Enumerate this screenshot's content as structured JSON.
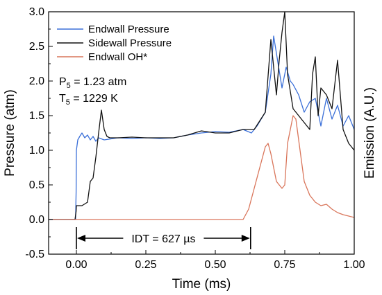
{
  "chart_data": {
    "type": "line",
    "xlabel": "Time (ms)",
    "ylabel": "Pressure (atm)",
    "y2label": "Emission (A.U.)",
    "xlim": [
      -0.1,
      1.0
    ],
    "ylim": [
      -0.5,
      3.0
    ],
    "xticks": [
      "0.00",
      "0.25",
      "0.50",
      "0.75",
      "1.00"
    ],
    "xtick_values": [
      0.0,
      0.25,
      0.5,
      0.75,
      1.0
    ],
    "yticks": [
      "-0.5",
      "0.0",
      "0.5",
      "1.0",
      "1.5",
      "2.0",
      "2.5",
      "3.0"
    ],
    "ytick_values": [
      -0.5,
      0.0,
      0.5,
      1.0,
      1.5,
      2.0,
      2.5,
      3.0
    ],
    "grid": false,
    "legend_position": "top-left",
    "series": [
      {
        "name": "Endwall Pressure",
        "color": "#3a6fd8",
        "x": [
          -0.1,
          -0.003,
          -0.001,
          0.0,
          0.005,
          0.012,
          0.02,
          0.03,
          0.04,
          0.05,
          0.06,
          0.07,
          0.08,
          0.1,
          0.15,
          0.2,
          0.25,
          0.3,
          0.35,
          0.4,
          0.45,
          0.5,
          0.55,
          0.6,
          0.63,
          0.65,
          0.68,
          0.7,
          0.71,
          0.72,
          0.74,
          0.755,
          0.77,
          0.78,
          0.8,
          0.82,
          0.84,
          0.86,
          0.88,
          0.9,
          0.92,
          0.94,
          0.96,
          0.98,
          1.0
        ],
        "y": [
          0.0,
          0.0,
          0.4,
          1.0,
          1.15,
          1.2,
          1.25,
          1.18,
          1.22,
          1.15,
          1.2,
          1.13,
          1.18,
          1.15,
          1.18,
          1.17,
          1.18,
          1.17,
          1.18,
          1.22,
          1.25,
          1.27,
          1.26,
          1.3,
          1.25,
          1.35,
          1.55,
          2.1,
          2.65,
          2.4,
          1.9,
          2.2,
          2.0,
          1.95,
          1.8,
          1.55,
          1.7,
          1.75,
          1.35,
          1.75,
          1.45,
          1.65,
          1.35,
          1.5,
          1.3
        ]
      },
      {
        "name": "Sidewall Pressure",
        "color": "#111111",
        "x": [
          -0.1,
          -0.005,
          -0.001,
          0.0,
          0.01,
          0.02,
          0.04,
          0.05,
          0.06,
          0.07,
          0.08,
          0.09,
          0.1,
          0.11,
          0.12,
          0.15,
          0.2,
          0.25,
          0.3,
          0.35,
          0.4,
          0.45,
          0.5,
          0.55,
          0.6,
          0.64,
          0.68,
          0.7,
          0.72,
          0.73,
          0.74,
          0.75,
          0.76,
          0.78,
          0.8,
          0.82,
          0.84,
          0.85,
          0.86,
          0.87,
          0.88,
          0.9,
          0.92,
          0.94,
          0.96,
          0.98,
          1.0
        ],
        "y": [
          0.0,
          0.0,
          0.12,
          0.2,
          0.2,
          0.2,
          0.25,
          0.55,
          0.6,
          0.9,
          1.25,
          1.58,
          1.3,
          1.2,
          1.18,
          1.18,
          1.19,
          1.18,
          1.18,
          1.18,
          1.22,
          1.28,
          1.25,
          1.25,
          1.3,
          1.3,
          1.55,
          2.6,
          1.8,
          2.3,
          2.7,
          3.0,
          2.1,
          1.6,
          1.5,
          1.4,
          1.3,
          2.1,
          2.35,
          1.5,
          1.9,
          1.8,
          1.6,
          2.3,
          1.3,
          1.1,
          1.0
        ]
      },
      {
        "name": "Endwall OH*",
        "color": "#d9755a",
        "x": [
          -0.1,
          0.6,
          0.62,
          0.64,
          0.66,
          0.68,
          0.69,
          0.7,
          0.72,
          0.74,
          0.75,
          0.76,
          0.77,
          0.78,
          0.79,
          0.8,
          0.82,
          0.84,
          0.86,
          0.88,
          0.9,
          0.92,
          0.94,
          0.96,
          0.98,
          1.0
        ],
        "y": [
          0.0,
          0.0,
          0.15,
          0.45,
          0.75,
          1.05,
          1.1,
          0.95,
          0.55,
          0.45,
          0.5,
          1.1,
          1.3,
          1.5,
          1.45,
          1.15,
          0.55,
          0.35,
          0.25,
          0.2,
          0.22,
          0.15,
          0.1,
          0.07,
          0.05,
          0.03
        ]
      }
    ],
    "annotations": {
      "p5": {
        "symbol": "P",
        "sub": "5",
        "value": " = 1.23 atm"
      },
      "t5": {
        "symbol": "T",
        "sub": "5",
        "value": " = 1229 K"
      },
      "idt": {
        "label": "IDT = 627  µs",
        "x_start": 0.0,
        "x_end": 0.627,
        "y": -0.27
      }
    }
  }
}
